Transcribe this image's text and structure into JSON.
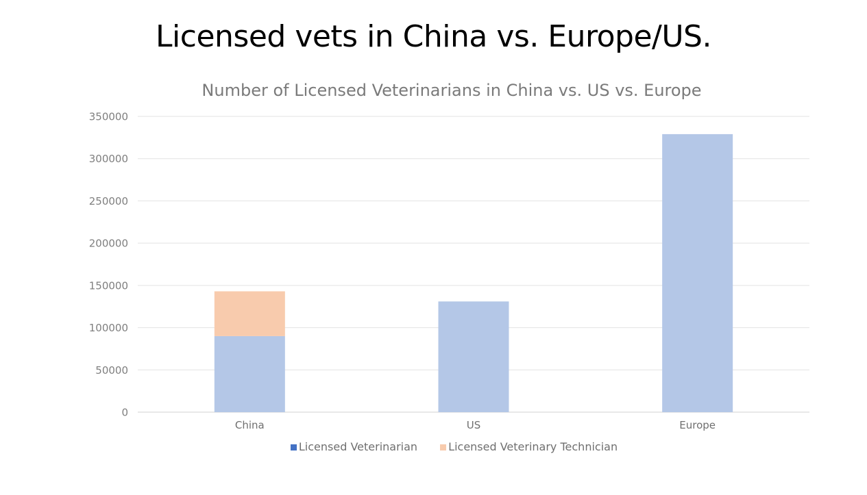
{
  "slide": {
    "title": "Licensed vets in China vs. Europe/US."
  },
  "chart_data": {
    "type": "bar",
    "stacked": true,
    "title": "Number of Licensed Veterinarians in China vs. US vs. Europe",
    "xlabel": "",
    "ylabel": "",
    "categories": [
      "China",
      "US",
      "Europe"
    ],
    "series": [
      {
        "name": "Licensed Veterinarian",
        "values": [
          90000,
          131000,
          329000
        ],
        "color": "#b4c7e7",
        "legend_color": "#4472c4"
      },
      {
        "name": "Licensed Veterinary Technician",
        "values": [
          53000,
          0,
          0
        ],
        "color": "#f8cbad",
        "legend_color": "#f8cbad"
      }
    ],
    "ylim": [
      0,
      350000
    ],
    "yticks": [
      "0",
      "50000",
      "100000",
      "150000",
      "200000",
      "250000",
      "300000",
      "350000"
    ],
    "grid": true,
    "legend_position": "bottom"
  }
}
